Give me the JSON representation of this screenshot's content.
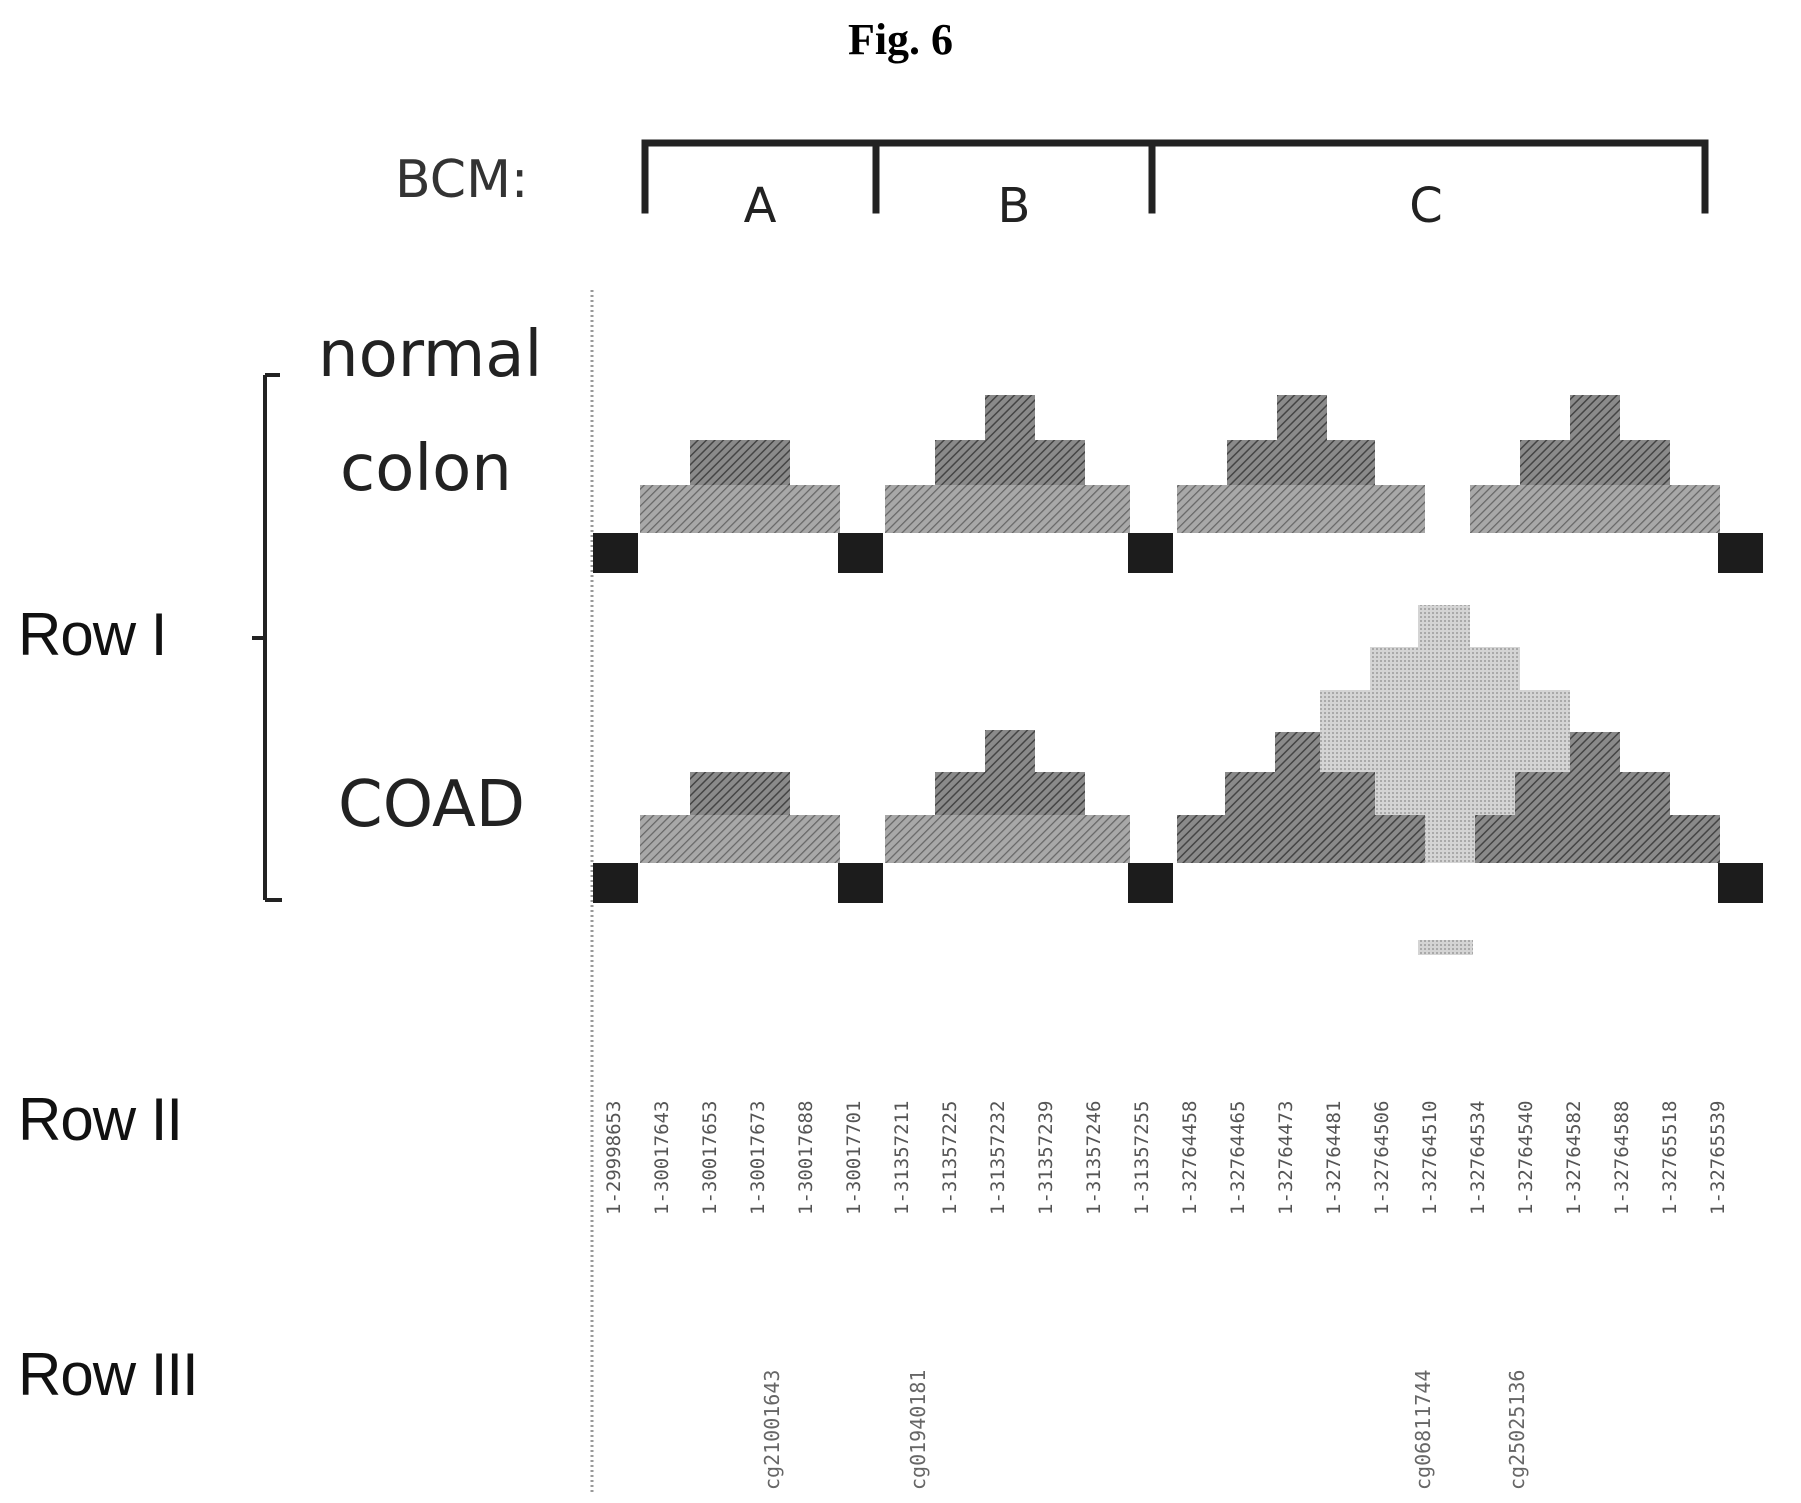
{
  "figure": {
    "title": "Fig. 6"
  },
  "bcm": {
    "label": "BCM:",
    "segments": [
      "A",
      "B",
      "C"
    ]
  },
  "samples": {
    "normal_line1": "normal",
    "normal_line2": "colon",
    "tumor": "COAD"
  },
  "rows": {
    "row1": "Row I",
    "row2": "Row II",
    "row3": "Row III"
  },
  "row2_labels": [
    "1-29998653",
    "1-30017643",
    "1-30017653",
    "1-30017673",
    "1-30017688",
    "1-30017701",
    "1-31357211",
    "1-31357225",
    "1-31357232",
    "1-31357239",
    "1-31357246",
    "1-31357255",
    "1-32764458",
    "1-32764465",
    "1-32764473",
    "1-32764481",
    "1-32764506",
    "1-32764510",
    "1-32764534",
    "1-32764540",
    "1-32764582",
    "1-32764588",
    "1-32765518",
    "1-32765539"
  ],
  "row3_labels": [
    "cg21001643",
    "cg01940181",
    "cg06811744",
    "cg25025136"
  ],
  "colors": {
    "site": "#1c1c1c",
    "hatch": "#555555",
    "light": "#bdbdbd"
  }
}
